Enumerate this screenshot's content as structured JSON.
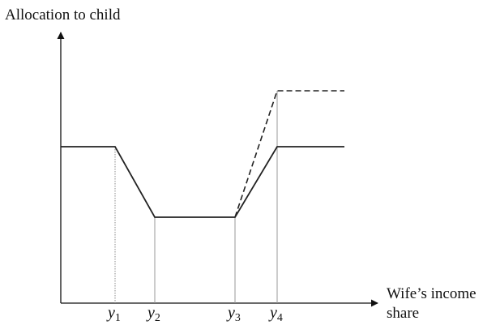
{
  "diagram": {
    "y_axis_label": "Allocation to child",
    "x_axis_label_line1": "Wife’s income",
    "x_axis_label_line2": "share",
    "thresholds": [
      {
        "symbol": "y",
        "subscript": "1"
      },
      {
        "symbol": "y",
        "subscript": "2"
      },
      {
        "symbol": "y",
        "subscript": "3"
      },
      {
        "symbol": "y",
        "subscript": "4"
      }
    ]
  },
  "chart_data": {
    "type": "line",
    "xlabel": "Wife’s income share",
    "ylabel": "Allocation to child",
    "x_ticks": [
      "y1",
      "y2",
      "y3",
      "y4"
    ],
    "series": [
      {
        "style": "solid",
        "color": "#222222",
        "x": [
          0,
          "y1",
          "y2",
          "y3",
          "y4",
          "end"
        ],
        "levels": [
          "high",
          "high",
          "low",
          "low",
          "high",
          "high"
        ]
      },
      {
        "style": "dashed",
        "color": "#222222",
        "x": [
          "y3",
          "y4",
          "end"
        ],
        "levels": [
          "low",
          "higher",
          "higher"
        ]
      }
    ],
    "grid": false,
    "axis_color": "#111111",
    "guide_line_color": "#9a9a9a"
  }
}
